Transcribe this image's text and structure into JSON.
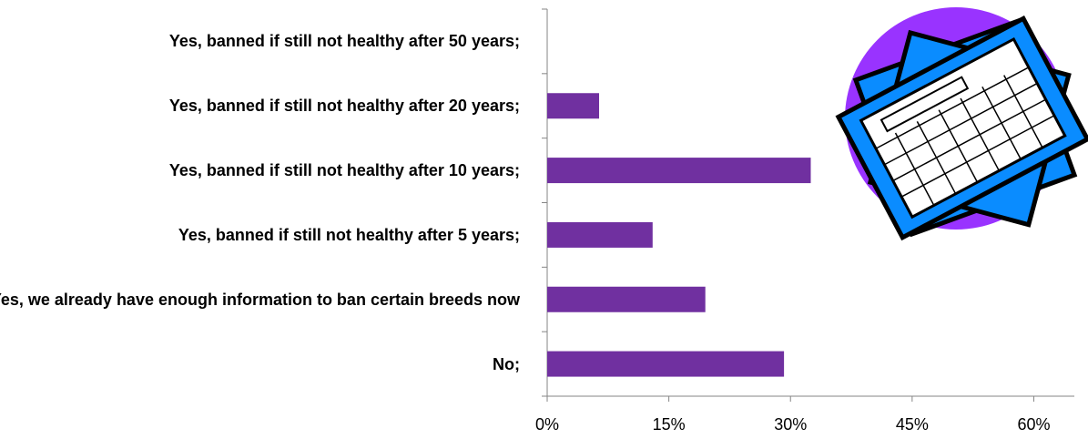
{
  "chart_data": {
    "type": "barh",
    "categories": [
      "Yes, banned if still not healthy after 50 years;",
      "Yes, banned if still not healthy after 20 years;",
      "Yes, banned if still not healthy after 10 years;",
      "Yes, banned if still not healthy after 5 years;",
      "Yes, we already have enough information to ban certain breeds now",
      "No;"
    ],
    "values": [
      0,
      6.4,
      32.5,
      13.0,
      19.5,
      29.2
    ],
    "color": "#7030a0",
    "xlim": [
      0,
      65
    ],
    "xticks": [
      {
        "value": 0,
        "label": "0%"
      },
      {
        "value": 15,
        "label": "15%"
      },
      {
        "value": 30,
        "label": "30%"
      },
      {
        "value": 45,
        "label": "45%"
      },
      {
        "value": 60,
        "label": "60%"
      }
    ]
  }
}
